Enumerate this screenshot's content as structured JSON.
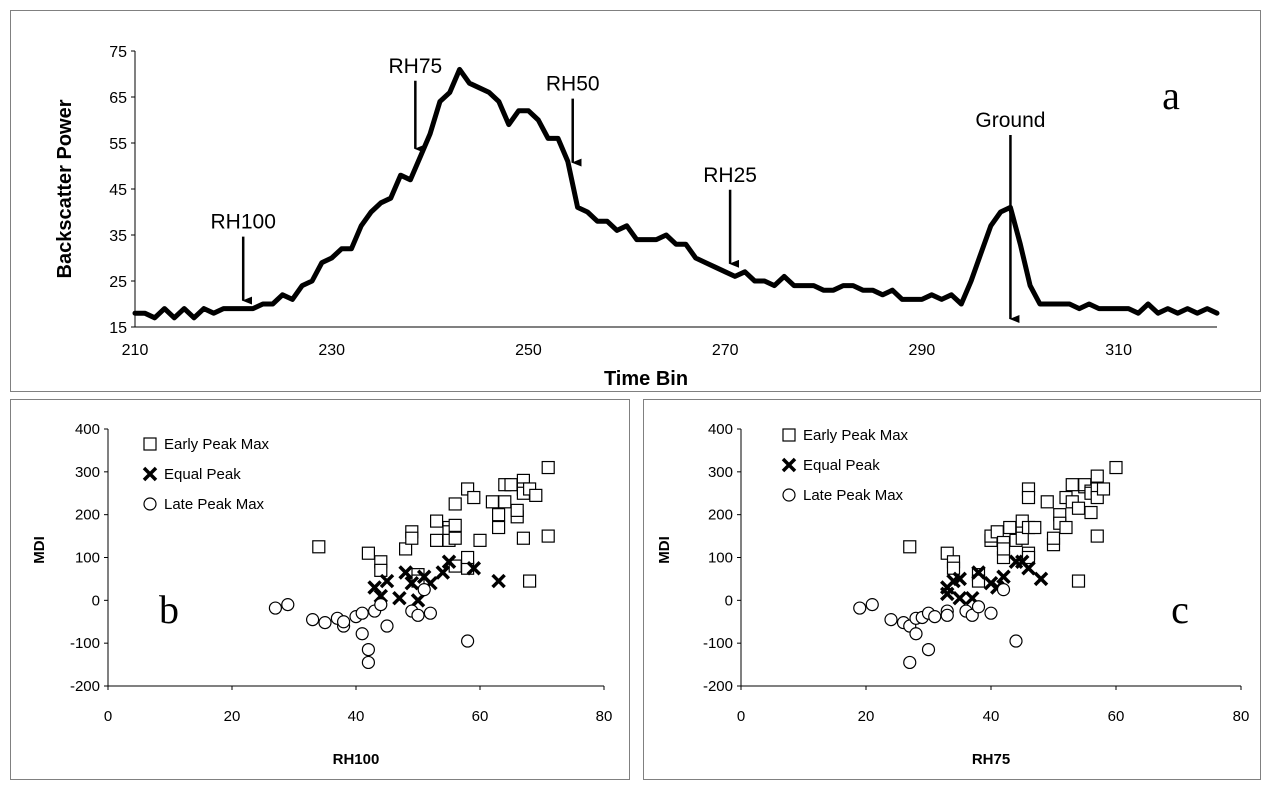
{
  "chart_data": [
    {
      "id": "a",
      "type": "line",
      "panel_label": "a",
      "xlabel": "Time Bin",
      "ylabel": "Backscatter Power",
      "xlim": [
        210,
        320
      ],
      "ylim": [
        15,
        75
      ],
      "xticks": [
        210,
        230,
        250,
        270,
        290,
        310
      ],
      "yticks": [
        15,
        25,
        35,
        45,
        55,
        65,
        75
      ],
      "x": [
        210,
        211,
        212,
        213,
        214,
        215,
        216,
        217,
        218,
        219,
        220,
        221,
        222,
        223,
        224,
        225,
        226,
        227,
        228,
        229,
        230,
        231,
        232,
        233,
        234,
        235,
        236,
        237,
        238,
        239,
        240,
        241,
        242,
        243,
        244,
        245,
        246,
        247,
        248,
        249,
        250,
        251,
        252,
        253,
        254,
        255,
        256,
        257,
        258,
        259,
        260,
        261,
        262,
        263,
        264,
        265,
        266,
        267,
        268,
        269,
        270,
        271,
        272,
        273,
        274,
        275,
        276,
        277,
        278,
        279,
        280,
        281,
        282,
        283,
        284,
        285,
        286,
        287,
        288,
        289,
        290,
        291,
        292,
        293,
        294,
        295,
        296,
        297,
        298,
        299,
        300,
        301,
        302,
        303,
        304,
        305,
        306,
        307,
        308,
        309,
        310,
        311,
        312,
        313,
        314,
        315,
        316,
        317,
        318,
        319,
        320
      ],
      "values": [
        18,
        18,
        17,
        19,
        17,
        19,
        17,
        19,
        18,
        19,
        19,
        19,
        19,
        20,
        20,
        22,
        21,
        24,
        25,
        29,
        30,
        32,
        32,
        37,
        40,
        42,
        43,
        48,
        47,
        52,
        57,
        64,
        66,
        71,
        68,
        67,
        66,
        64,
        59,
        62,
        62,
        60,
        56,
        56,
        51,
        41,
        40,
        38,
        38,
        36,
        37,
        34,
        34,
        34,
        35,
        33,
        33,
        30,
        29,
        28,
        27,
        26,
        27,
        25,
        25,
        24,
        26,
        24,
        24,
        24,
        23,
        23,
        24,
        24,
        23,
        23,
        22,
        23,
        21,
        21,
        21,
        22,
        21,
        22,
        20,
        25,
        31,
        37,
        40,
        41,
        33,
        24,
        20,
        20,
        20,
        20,
        19,
        20,
        19,
        19,
        19,
        19,
        18,
        20,
        18,
        19,
        18,
        19,
        18,
        19,
        18
      ],
      "annotations": [
        {
          "label": "RH100",
          "x": 221,
          "y": 19
        },
        {
          "label": "RH75",
          "x": 238.5,
          "y": 52
        },
        {
          "label": "RH50",
          "x": 254.5,
          "y": 49
        },
        {
          "label": "RH25",
          "x": 270.5,
          "y": 27
        },
        {
          "label": "Ground",
          "x": 299,
          "y": 15
        }
      ]
    },
    {
      "id": "b",
      "type": "scatter",
      "panel_label": "b",
      "xlabel": "RH100",
      "ylabel": "MDI",
      "xlim": [
        0,
        80
      ],
      "ylim": [
        -200,
        400
      ],
      "xticks": [
        0,
        20,
        40,
        60,
        80
      ],
      "yticks": [
        -200,
        -100,
        0,
        100,
        200,
        300,
        400
      ],
      "legend": [
        "Early Peak Max",
        "Equal Peak",
        "Late Peak Max"
      ],
      "series": [
        {
          "name": "Early Peak Max",
          "marker": "square",
          "points": [
            [
              34,
              125
            ],
            [
              42,
              110
            ],
            [
              44,
              90
            ],
            [
              44,
              70
            ],
            [
              48,
              120
            ],
            [
              49,
              160
            ],
            [
              49,
              145
            ],
            [
              50,
              60
            ],
            [
              50,
              45
            ],
            [
              53,
              185
            ],
            [
              53,
              140
            ],
            [
              55,
              170
            ],
            [
              55,
              160
            ],
            [
              55,
              140
            ],
            [
              56,
              175
            ],
            [
              56,
              145
            ],
            [
              56,
              225
            ],
            [
              56,
              80
            ],
            [
              58,
              260
            ],
            [
              59,
              240
            ],
            [
              60,
              140
            ],
            [
              62,
              230
            ],
            [
              63,
              200
            ],
            [
              63,
              170
            ],
            [
              64,
              270
            ],
            [
              64,
              230
            ],
            [
              65,
              270
            ],
            [
              66,
              195
            ],
            [
              66,
              210
            ],
            [
              67,
              280
            ],
            [
              67,
              260
            ],
            [
              67,
              250
            ],
            [
              67,
              145
            ],
            [
              68,
              260
            ],
            [
              68,
              45
            ],
            [
              69,
              245
            ],
            [
              71,
              310
            ],
            [
              71,
              150
            ],
            [
              58,
              75
            ],
            [
              58,
              100
            ]
          ]
        },
        {
          "name": "Equal Peak",
          "marker": "x",
          "points": [
            [
              43,
              30
            ],
            [
              44,
              10
            ],
            [
              45,
              45
            ],
            [
              47,
              5
            ],
            [
              48,
              65
            ],
            [
              49,
              40
            ],
            [
              50,
              0
            ],
            [
              51,
              55
            ],
            [
              52,
              40
            ],
            [
              54,
              65
            ],
            [
              55,
              90
            ],
            [
              59,
              75
            ],
            [
              63,
              45
            ]
          ]
        },
        {
          "name": "Late Peak Max",
          "marker": "circle",
          "points": [
            [
              27,
              -18
            ],
            [
              29,
              -10
            ],
            [
              33,
              -45
            ],
            [
              35,
              -52
            ],
            [
              37,
              -42
            ],
            [
              38,
              -60
            ],
            [
              40,
              -38
            ],
            [
              41,
              -78
            ],
            [
              42,
              -115
            ],
            [
              42,
              -145
            ],
            [
              43,
              -25
            ],
            [
              44,
              -10
            ],
            [
              45,
              -60
            ],
            [
              49,
              -25
            ],
            [
              50,
              -35
            ],
            [
              51,
              25
            ],
            [
              52,
              -30
            ],
            [
              58,
              -95
            ],
            [
              38,
              -50
            ],
            [
              41,
              -30
            ]
          ]
        }
      ]
    },
    {
      "id": "c",
      "type": "scatter",
      "panel_label": "c",
      "xlabel": "RH75",
      "ylabel": "MDI",
      "xlim": [
        0,
        80
      ],
      "ylim": [
        -200,
        400
      ],
      "xticks": [
        0,
        20,
        40,
        60,
        80
      ],
      "yticks": [
        -200,
        -100,
        0,
        100,
        200,
        300,
        400
      ],
      "legend": [
        "Early Peak Max",
        "Equal Peak",
        "Late Peak Max"
      ],
      "series": [
        {
          "name": "Early Peak Max",
          "marker": "square",
          "points": [
            [
              27,
              125
            ],
            [
              33,
              110
            ],
            [
              34,
              90
            ],
            [
              34,
              75
            ],
            [
              38,
              60
            ],
            [
              38,
              45
            ],
            [
              40,
              140
            ],
            [
              40,
              150
            ],
            [
              41,
              160
            ],
            [
              42,
              135
            ],
            [
              42,
              100
            ],
            [
              42,
              120
            ],
            [
              43,
              170
            ],
            [
              44,
              140
            ],
            [
              45,
              170
            ],
            [
              45,
              185
            ],
            [
              45,
              145
            ],
            [
              46,
              260
            ],
            [
              46,
              240
            ],
            [
              46,
              170
            ],
            [
              46,
              110
            ],
            [
              46,
              100
            ],
            [
              47,
              170
            ],
            [
              49,
              230
            ],
            [
              50,
              130
            ],
            [
              50,
              145
            ],
            [
              51,
              200
            ],
            [
              51,
              180
            ],
            [
              52,
              240
            ],
            [
              52,
              170
            ],
            [
              53,
              270
            ],
            [
              53,
              230
            ],
            [
              54,
              215
            ],
            [
              54,
              45
            ],
            [
              55,
              265
            ],
            [
              55,
              270
            ],
            [
              56,
              255
            ],
            [
              56,
              205
            ],
            [
              56,
              250
            ],
            [
              57,
              290
            ],
            [
              57,
              260
            ],
            [
              57,
              240
            ],
            [
              57,
              150
            ],
            [
              58,
              260
            ],
            [
              60,
              310
            ]
          ]
        },
        {
          "name": "Equal Peak",
          "marker": "x",
          "points": [
            [
              33,
              30
            ],
            [
              33,
              15
            ],
            [
              34,
              45
            ],
            [
              35,
              5
            ],
            [
              35,
              50
            ],
            [
              37,
              5
            ],
            [
              38,
              65
            ],
            [
              40,
              40
            ],
            [
              41,
              30
            ],
            [
              42,
              55
            ],
            [
              44,
              90
            ],
            [
              46,
              75
            ],
            [
              48,
              50
            ],
            [
              45,
              90
            ]
          ]
        },
        {
          "name": "Late Peak Max",
          "marker": "circle",
          "points": [
            [
              19,
              -18
            ],
            [
              21,
              -10
            ],
            [
              24,
              -45
            ],
            [
              26,
              -52
            ],
            [
              27,
              -145
            ],
            [
              27,
              -60
            ],
            [
              28,
              -42
            ],
            [
              28,
              -78
            ],
            [
              29,
              -40
            ],
            [
              30,
              -115
            ],
            [
              30,
              -30
            ],
            [
              31,
              -38
            ],
            [
              33,
              -25
            ],
            [
              33,
              -35
            ],
            [
              36,
              -25
            ],
            [
              37,
              -35
            ],
            [
              40,
              -30
            ],
            [
              42,
              25
            ],
            [
              44,
              -95
            ],
            [
              38,
              -15
            ]
          ]
        }
      ]
    }
  ]
}
